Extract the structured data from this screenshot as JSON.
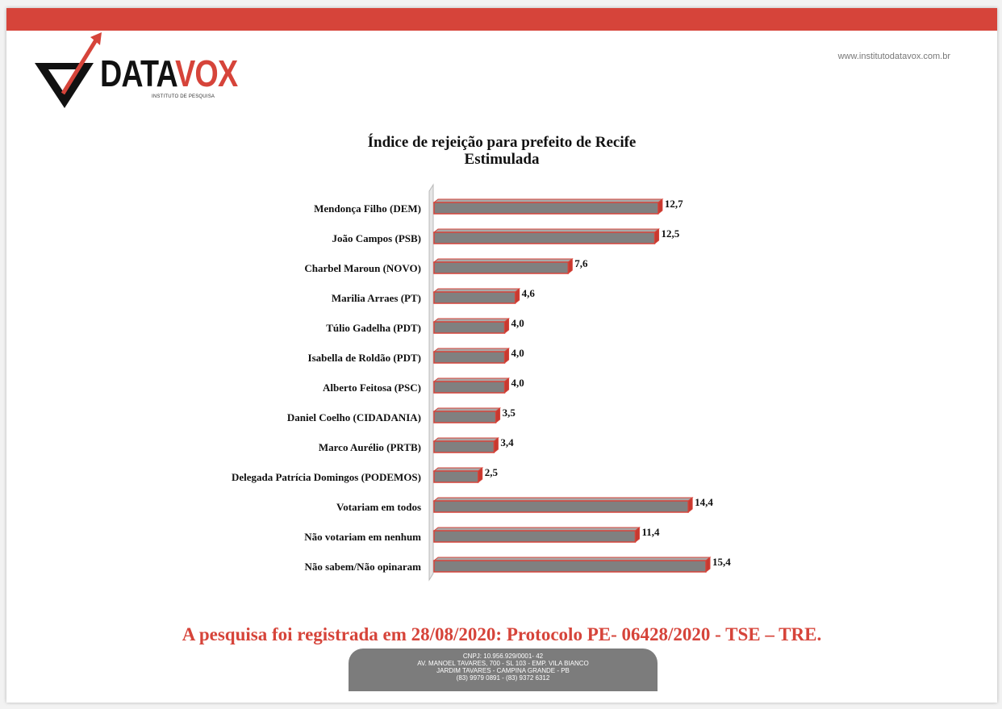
{
  "header": {
    "logo_text_main": "DATA",
    "logo_text_accent": "VOX",
    "logo_subtitle": "INSTITUTO DE PESQUISA",
    "website": "www.institutodatavox.com.br"
  },
  "colors": {
    "brand_red": "#d6443a",
    "bar_fill": "#808080",
    "bar_edge": "#d6443a"
  },
  "chart_data": {
    "type": "bar",
    "orientation": "horizontal",
    "title": "Índice de rejeição para prefeito de Recife",
    "subtitle": "Estimulada",
    "categories": [
      "Mendonça Filho (DEM)",
      "João Campos (PSB)",
      "Charbel Maroun (NOVO)",
      "Marilia Arraes (PT)",
      "Túlio Gadelha (PDT)",
      "Isabella de Roldão (PDT)",
      "Alberto  Feitosa (PSC)",
      "Daniel Coelho (CIDADANIA)",
      "Marco Aurélio (PRTB)",
      "Delegada Patrícia Domingos (PODEMOS)",
      "Votariam em todos",
      "Não votariam em nenhum",
      "Não sabem/Não opinaram"
    ],
    "values": [
      12.7,
      12.5,
      7.6,
      4.6,
      4.0,
      4.0,
      4.0,
      3.5,
      3.4,
      2.5,
      14.4,
      11.4,
      15.4
    ],
    "value_labels": [
      "12,7",
      "12,5",
      "7,6",
      "4,6",
      "4,0",
      "4,0",
      "4,0",
      "3,5",
      "3,4",
      "2,5",
      "14,4",
      "11,4",
      "15,4"
    ],
    "xlim": [
      0,
      15.4
    ],
    "grid": false,
    "legend": "none"
  },
  "footer": {
    "protocol": "A pesquisa foi registrada em 28/08/2020: Protocolo PE- 06428/2020 - TSE – TRE.",
    "lines": [
      "CNPJ: 10.956.929/0001- 42",
      "AV. MANOEL TAVARES, 700 - SL 103 - EMP. VILA BIANCO",
      "JARDIM TAVARES - CAMPINA GRANDE - PB",
      "(83) 9979 0891 - (83) 9372 6312"
    ]
  }
}
